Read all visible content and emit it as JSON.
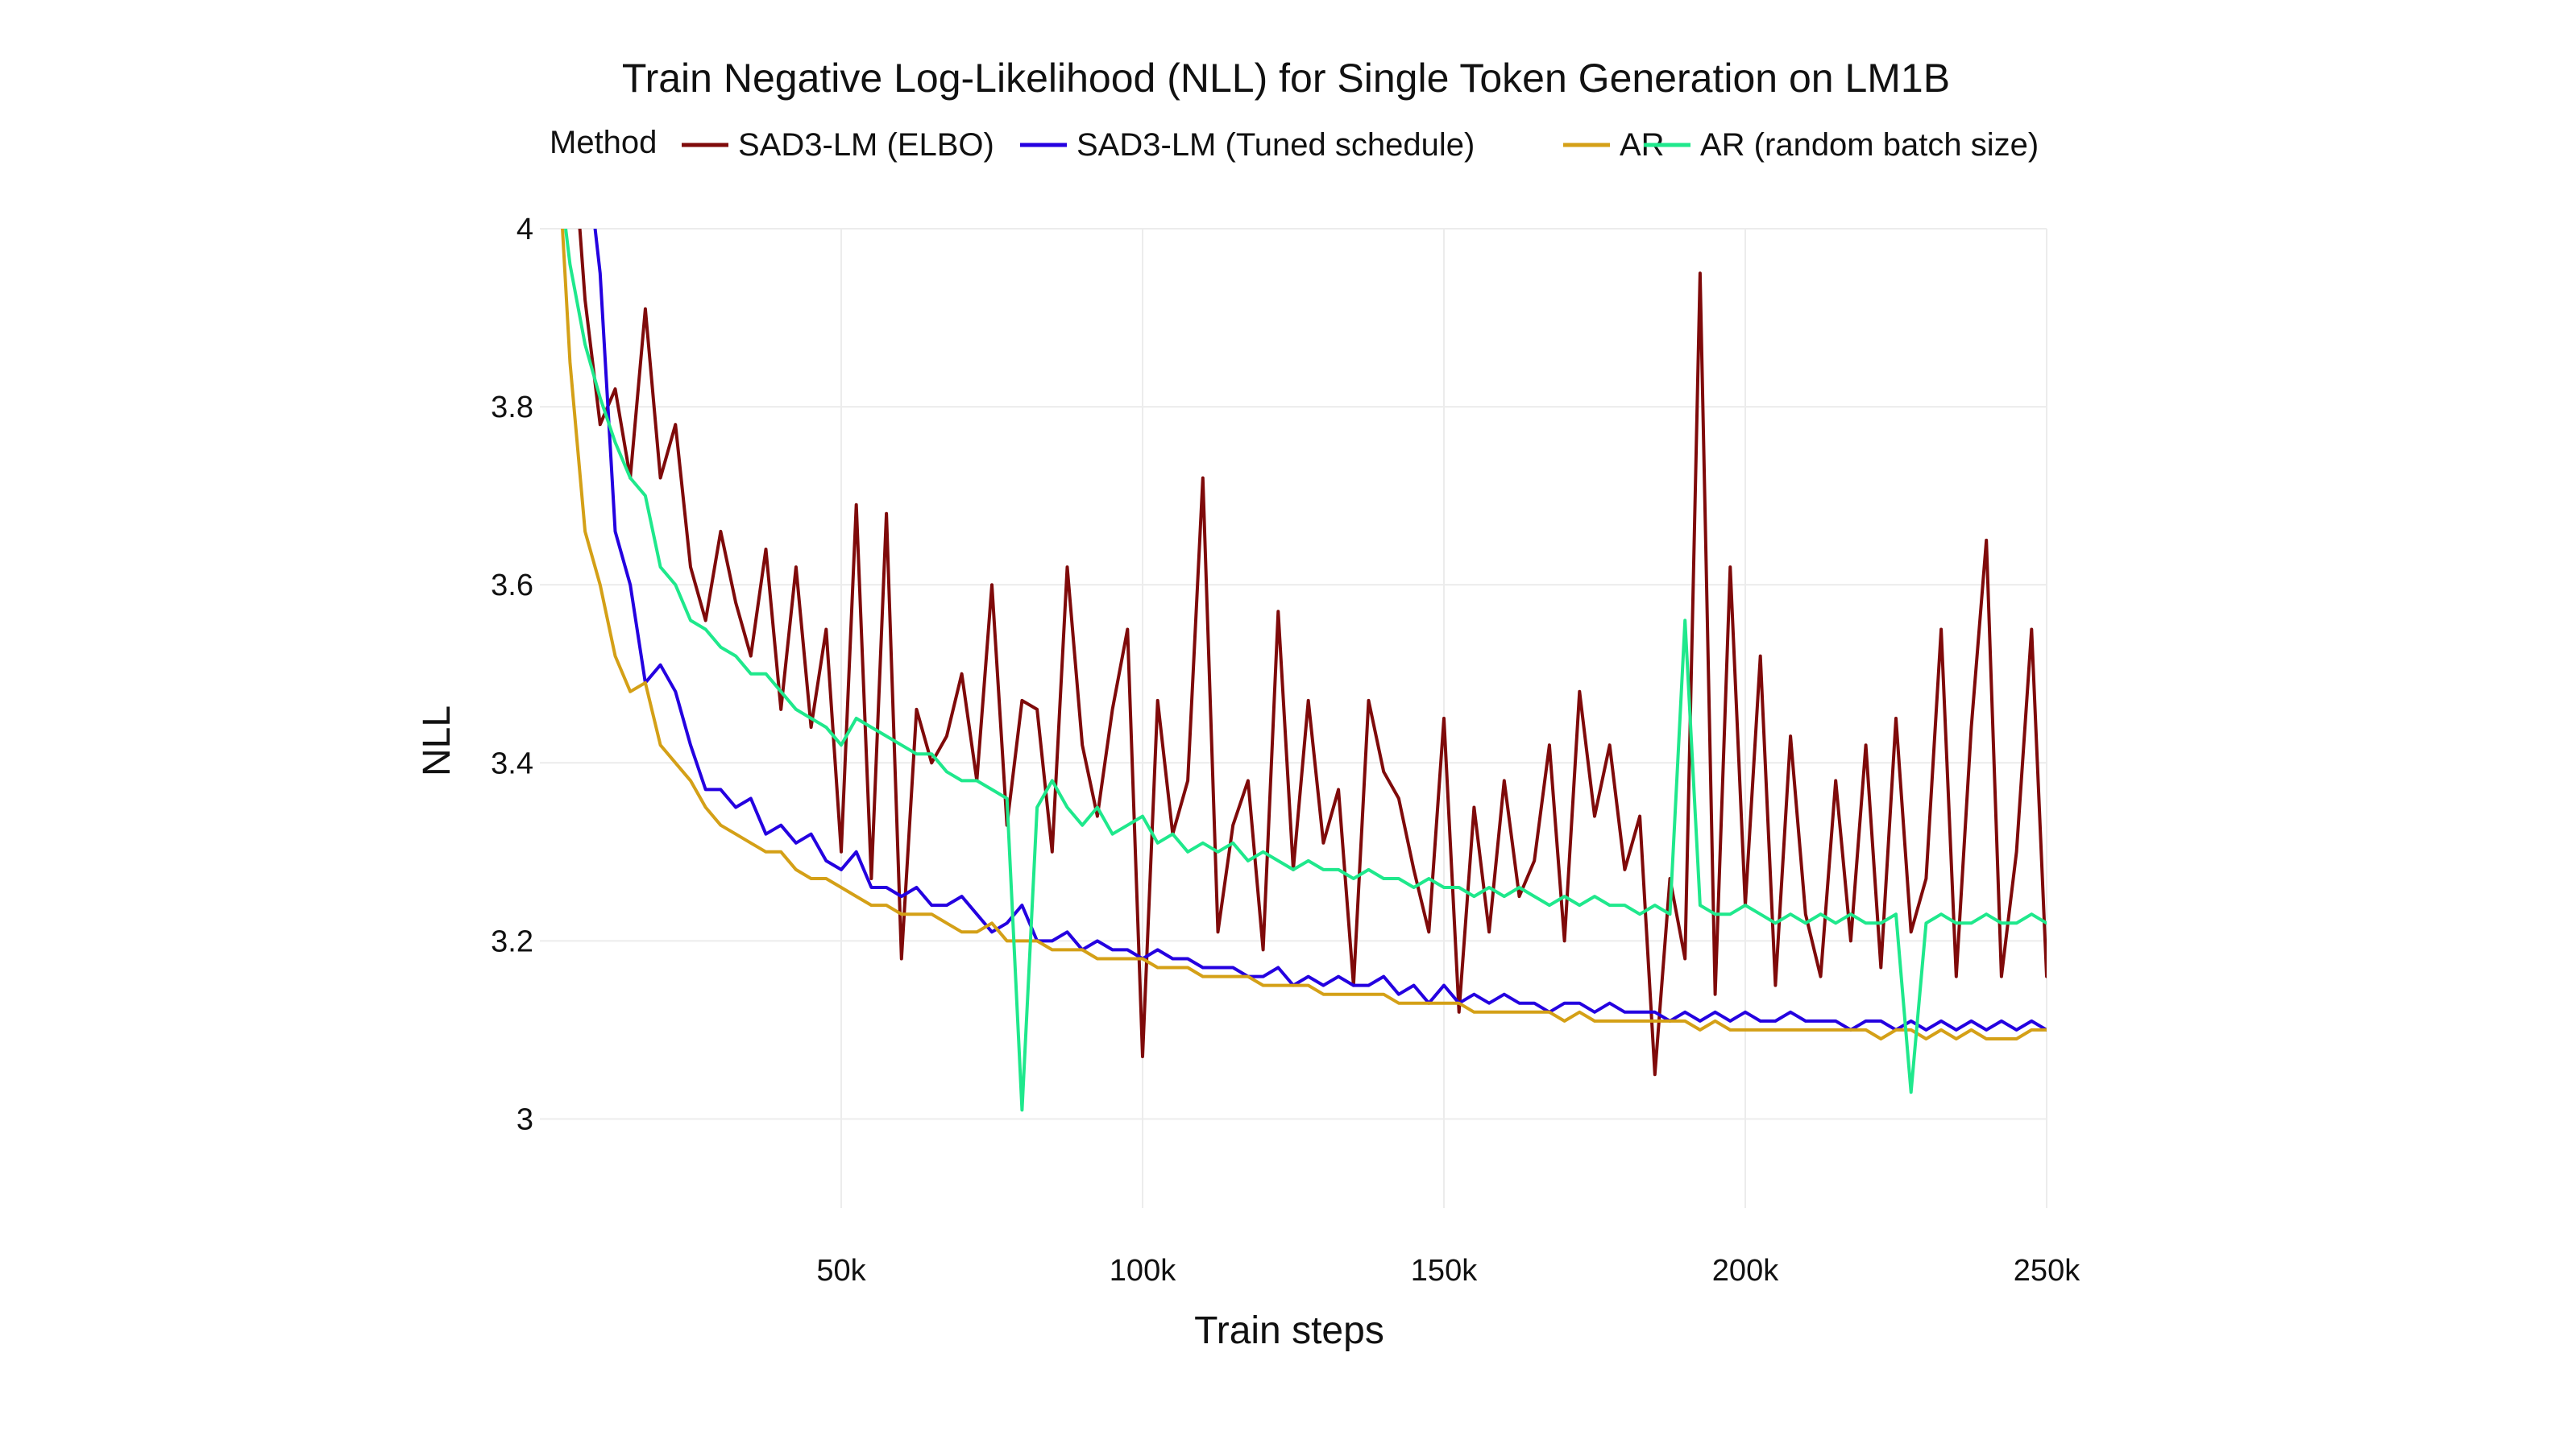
{
  "chart_data": {
    "type": "line",
    "title": "Train Negative Log-Likelihood (NLL) for Single Token Generation on LM1B",
    "xlabel": "Train steps",
    "ylabel": "NLL",
    "legend_title": "Method",
    "legend_position": "top",
    "xlim": [
      0,
      250000
    ],
    "ylim": [
      2.9,
      4.0
    ],
    "x_ticks": [
      50000,
      100000,
      150000,
      200000,
      250000
    ],
    "x_tick_labels": [
      "50k",
      "100k",
      "150k",
      "200k",
      "250k"
    ],
    "y_ticks": [
      3.0,
      3.2,
      3.4,
      3.6,
      3.8,
      4.0
    ],
    "y_tick_labels": [
      "3",
      "3.2",
      "3.4",
      "3.6",
      "3.8",
      "4"
    ],
    "grid": true,
    "series": [
      {
        "name": "SAD3-LM (ELBO)",
        "color": "#7f0a0a",
        "x": [
          5000,
          7500,
          10000,
          12500,
          15000,
          17500,
          20000,
          22500,
          25000,
          27500,
          30000,
          32500,
          35000,
          37500,
          40000,
          42500,
          45000,
          47500,
          50000,
          52500,
          55000,
          57500,
          60000,
          62500,
          65000,
          67500,
          70000,
          72500,
          75000,
          77500,
          80000,
          82500,
          85000,
          87500,
          90000,
          92500,
          95000,
          97500,
          100000,
          102500,
          105000,
          107500,
          110000,
          112500,
          115000,
          117500,
          120000,
          122500,
          125000,
          127500,
          130000,
          132500,
          135000,
          137500,
          140000,
          142500,
          145000,
          147500,
          150000,
          152500,
          155000,
          157500,
          160000,
          162500,
          165000,
          167500,
          170000,
          172500,
          175000,
          177500,
          180000,
          182500,
          185000,
          187500,
          190000,
          192500,
          195000,
          197500,
          200000,
          202500,
          205000,
          207500,
          210000,
          212500,
          215000,
          217500,
          220000,
          222500,
          225000,
          227500,
          230000,
          232500,
          235000,
          237500,
          240000,
          242500,
          245000,
          247500,
          250000
        ],
        "values": [
          4.15,
          3.92,
          3.78,
          3.82,
          3.72,
          3.91,
          3.72,
          3.78,
          3.62,
          3.56,
          3.66,
          3.58,
          3.52,
          3.64,
          3.46,
          3.62,
          3.44,
          3.55,
          3.3,
          3.69,
          3.27,
          3.68,
          3.18,
          3.46,
          3.4,
          3.43,
          3.5,
          3.38,
          3.6,
          3.33,
          3.47,
          3.46,
          3.3,
          3.62,
          3.42,
          3.34,
          3.46,
          3.55,
          3.07,
          3.47,
          3.32,
          3.38,
          3.72,
          3.21,
          3.33,
          3.38,
          3.19,
          3.57,
          3.28,
          3.47,
          3.31,
          3.37,
          3.15,
          3.47,
          3.39,
          3.36,
          3.28,
          3.21,
          3.45,
          3.12,
          3.35,
          3.21,
          3.38,
          3.25,
          3.29,
          3.42,
          3.2,
          3.48,
          3.34,
          3.42,
          3.28,
          3.34,
          3.05,
          3.27,
          3.18,
          3.95,
          3.14,
          3.62,
          3.24,
          3.52,
          3.15,
          3.43,
          3.23,
          3.16,
          3.38,
          3.2,
          3.42,
          3.17,
          3.45,
          3.21,
          3.27,
          3.55,
          3.16,
          3.44,
          3.65,
          3.16,
          3.3,
          3.55,
          3.16
        ]
      },
      {
        "name": "SAD3-LM (Tuned schedule)",
        "color": "#2400e0",
        "x": [
          5000,
          7500,
          10000,
          12500,
          15000,
          17500,
          20000,
          22500,
          25000,
          27500,
          30000,
          32500,
          35000,
          37500,
          40000,
          42500,
          45000,
          47500,
          50000,
          52500,
          55000,
          57500,
          60000,
          62500,
          65000,
          67500,
          70000,
          72500,
          75000,
          77500,
          80000,
          82500,
          85000,
          87500,
          90000,
          92500,
          95000,
          97500,
          100000,
          102500,
          105000,
          107500,
          110000,
          112500,
          115000,
          117500,
          120000,
          122500,
          125000,
          127500,
          130000,
          132500,
          135000,
          137500,
          140000,
          142500,
          145000,
          147500,
          150000,
          152500,
          155000,
          157500,
          160000,
          162500,
          165000,
          167500,
          170000,
          172500,
          175000,
          177500,
          180000,
          182500,
          185000,
          187500,
          190000,
          192500,
          195000,
          197500,
          200000,
          202500,
          205000,
          207500,
          210000,
          212500,
          215000,
          217500,
          220000,
          222500,
          225000,
          227500,
          230000,
          232500,
          235000,
          237500,
          240000,
          242500,
          245000,
          247500,
          250000
        ],
        "values": [
          4.4,
          4.1,
          3.95,
          3.66,
          3.6,
          3.49,
          3.51,
          3.48,
          3.42,
          3.37,
          3.37,
          3.35,
          3.36,
          3.32,
          3.33,
          3.31,
          3.32,
          3.29,
          3.28,
          3.3,
          3.26,
          3.26,
          3.25,
          3.26,
          3.24,
          3.24,
          3.25,
          3.23,
          3.21,
          3.22,
          3.24,
          3.2,
          3.2,
          3.21,
          3.19,
          3.2,
          3.19,
          3.19,
          3.18,
          3.19,
          3.18,
          3.18,
          3.17,
          3.17,
          3.17,
          3.16,
          3.16,
          3.17,
          3.15,
          3.16,
          3.15,
          3.16,
          3.15,
          3.15,
          3.16,
          3.14,
          3.15,
          3.13,
          3.15,
          3.13,
          3.14,
          3.13,
          3.14,
          3.13,
          3.13,
          3.12,
          3.13,
          3.13,
          3.12,
          3.13,
          3.12,
          3.12,
          3.12,
          3.11,
          3.12,
          3.11,
          3.12,
          3.11,
          3.12,
          3.11,
          3.11,
          3.12,
          3.11,
          3.11,
          3.11,
          3.1,
          3.11,
          3.11,
          3.1,
          3.11,
          3.1,
          3.11,
          3.1,
          3.11,
          3.1,
          3.11,
          3.1,
          3.11,
          3.1
        ]
      },
      {
        "name": "AR",
        "color": "#d4a017",
        "x": [
          2500,
          5000,
          7500,
          10000,
          12500,
          15000,
          17500,
          20000,
          22500,
          25000,
          27500,
          30000,
          32500,
          35000,
          37500,
          40000,
          42500,
          45000,
          47500,
          50000,
          52500,
          55000,
          57500,
          60000,
          62500,
          65000,
          67500,
          70000,
          72500,
          75000,
          77500,
          80000,
          82500,
          85000,
          87500,
          90000,
          92500,
          95000,
          97500,
          100000,
          102500,
          105000,
          107500,
          110000,
          112500,
          115000,
          117500,
          120000,
          122500,
          125000,
          127500,
          130000,
          132500,
          135000,
          137500,
          140000,
          142500,
          145000,
          147500,
          150000,
          152500,
          155000,
          157500,
          160000,
          162500,
          165000,
          167500,
          170000,
          172500,
          175000,
          177500,
          180000,
          182500,
          185000,
          187500,
          190000,
          192500,
          195000,
          197500,
          200000,
          202500,
          205000,
          207500,
          210000,
          212500,
          215000,
          217500,
          220000,
          222500,
          225000,
          227500,
          230000,
          232500,
          235000,
          237500,
          240000,
          242500,
          245000,
          247500,
          250000
        ],
        "values": [
          4.15,
          3.85,
          3.66,
          3.6,
          3.52,
          3.48,
          3.49,
          3.42,
          3.4,
          3.38,
          3.35,
          3.33,
          3.32,
          3.31,
          3.3,
          3.3,
          3.28,
          3.27,
          3.27,
          3.26,
          3.25,
          3.24,
          3.24,
          3.23,
          3.23,
          3.23,
          3.22,
          3.21,
          3.21,
          3.22,
          3.2,
          3.2,
          3.2,
          3.19,
          3.19,
          3.19,
          3.18,
          3.18,
          3.18,
          3.18,
          3.17,
          3.17,
          3.17,
          3.16,
          3.16,
          3.16,
          3.16,
          3.15,
          3.15,
          3.15,
          3.15,
          3.14,
          3.14,
          3.14,
          3.14,
          3.14,
          3.13,
          3.13,
          3.13,
          3.13,
          3.13,
          3.12,
          3.12,
          3.12,
          3.12,
          3.12,
          3.12,
          3.11,
          3.12,
          3.11,
          3.11,
          3.11,
          3.11,
          3.11,
          3.11,
          3.11,
          3.1,
          3.11,
          3.1,
          3.1,
          3.1,
          3.1,
          3.1,
          3.1,
          3.1,
          3.1,
          3.1,
          3.1,
          3.09,
          3.1,
          3.1,
          3.09,
          3.1,
          3.09,
          3.1,
          3.09,
          3.09,
          3.09,
          3.1,
          3.1
        ]
      },
      {
        "name": "AR (random batch size)",
        "color": "#1fe88c",
        "x": [
          2500,
          5000,
          7500,
          10000,
          12500,
          15000,
          17500,
          20000,
          22500,
          25000,
          27500,
          30000,
          32500,
          35000,
          37500,
          40000,
          42500,
          45000,
          47500,
          50000,
          52500,
          55000,
          57500,
          60000,
          62500,
          65000,
          67500,
          70000,
          72500,
          75000,
          77500,
          80000,
          82500,
          85000,
          87500,
          90000,
          92500,
          95000,
          97500,
          100000,
          102500,
          105000,
          107500,
          110000,
          112500,
          115000,
          117500,
          120000,
          122500,
          125000,
          127500,
          130000,
          132500,
          135000,
          137500,
          140000,
          142500,
          145000,
          147500,
          150000,
          152500,
          155000,
          157500,
          160000,
          162500,
          165000,
          167500,
          170000,
          172500,
          175000,
          177500,
          180000,
          182500,
          185000,
          187500,
          190000,
          192500,
          195000,
          197500,
          200000,
          202500,
          205000,
          207500,
          210000,
          212500,
          215000,
          217500,
          220000,
          222500,
          225000,
          227500,
          230000,
          232500,
          235000,
          237500,
          240000,
          242500,
          245000,
          247500,
          250000
        ],
        "values": [
          4.1,
          3.96,
          3.87,
          3.81,
          3.76,
          3.72,
          3.7,
          3.62,
          3.6,
          3.56,
          3.55,
          3.53,
          3.52,
          3.5,
          3.5,
          3.48,
          3.46,
          3.45,
          3.44,
          3.42,
          3.45,
          3.44,
          3.43,
          3.42,
          3.41,
          3.41,
          3.39,
          3.38,
          3.38,
          3.37,
          3.36,
          3.01,
          3.35,
          3.38,
          3.35,
          3.33,
          3.35,
          3.32,
          3.33,
          3.34,
          3.31,
          3.32,
          3.3,
          3.31,
          3.3,
          3.31,
          3.29,
          3.3,
          3.29,
          3.28,
          3.29,
          3.28,
          3.28,
          3.27,
          3.28,
          3.27,
          3.27,
          3.26,
          3.27,
          3.26,
          3.26,
          3.25,
          3.26,
          3.25,
          3.26,
          3.25,
          3.24,
          3.25,
          3.24,
          3.25,
          3.24,
          3.24,
          3.23,
          3.24,
          3.23,
          3.56,
          3.24,
          3.23,
          3.23,
          3.24,
          3.23,
          3.22,
          3.23,
          3.22,
          3.23,
          3.22,
          3.23,
          3.22,
          3.22,
          3.23,
          3.03,
          3.22,
          3.23,
          3.22,
          3.22,
          3.23,
          3.22,
          3.22,
          3.23,
          3.22
        ]
      }
    ]
  }
}
